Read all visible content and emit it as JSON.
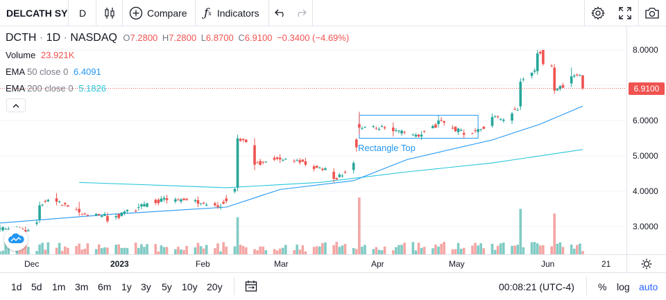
{
  "toolbar": {
    "symbol": "DELCATH SY",
    "interval": "D",
    "compare_label": "Compare",
    "indicators_label": "Indicators"
  },
  "legend": {
    "ticker": "DCTH",
    "interval": "1D",
    "exchange": "NASDAQ",
    "open_label": "O",
    "open": "7.2800",
    "high_label": "H",
    "high": "7.2800",
    "low_label": "L",
    "low": "6.8700",
    "close_label": "C",
    "close": "6.9100",
    "change": "−0.3400 (−4.69%)",
    "volume_label": "Volume",
    "volume": "23.921K",
    "ema50_label": "EMA",
    "ema50_params": "50 close 0",
    "ema50_value": "6.4091",
    "ema200_label": "EMA",
    "ema200_params": "200 close 0",
    "ema200_value": "5.1826"
  },
  "annotation": {
    "label": "Rectangle Top"
  },
  "colors": {
    "up": "#26a69a",
    "down": "#ef5350",
    "ema50": "#2196f3",
    "ema200": "#26c6da",
    "vol_up": "#80cbc4",
    "vol_down": "#f4a6a4",
    "rect": "#2196f3"
  },
  "price_axis": {
    "labels": [
      "8.0000",
      "6.0000",
      "5.0000",
      "4.0000",
      "3.0000"
    ],
    "current_price": "6.9100"
  },
  "time_axis": {
    "labels": [
      "Dec",
      "2023",
      "Feb",
      "Mar",
      "Apr",
      "May",
      "Jun",
      "21"
    ]
  },
  "bottom": {
    "ranges": [
      "1d",
      "5d",
      "1m",
      "3m",
      "6m",
      "1y",
      "3y",
      "5y",
      "10y",
      "20y"
    ],
    "clock": "00:08:21 (UTC-4)",
    "percent": "%",
    "log": "log",
    "auto": "auto"
  },
  "chart_data": {
    "type": "candlestick",
    "symbol": "DCTH",
    "x_range": [
      "2022-11-22",
      "2023-06-16"
    ],
    "y_range": [
      2.2,
      8.3
    ],
    "price_axis_ticks": [
      3.0,
      4.0,
      5.0,
      6.0,
      8.0
    ],
    "current_price": 6.91,
    "ohlc_samples": [
      {
        "date": "2022-11-22",
        "o": 2.95,
        "h": 3.05,
        "l": 2.85,
        "c": 2.95
      },
      {
        "date": "2022-12-01",
        "o": 2.9,
        "h": 3.0,
        "l": 2.75,
        "c": 2.85
      },
      {
        "date": "2022-12-06",
        "o": 3.2,
        "h": 3.7,
        "l": 3.1,
        "c": 3.6
      },
      {
        "date": "2022-12-12",
        "o": 3.8,
        "h": 3.95,
        "l": 3.6,
        "c": 3.7
      },
      {
        "date": "2022-12-20",
        "o": 3.5,
        "h": 3.7,
        "l": 3.3,
        "c": 3.4
      },
      {
        "date": "2022-12-30",
        "o": 3.3,
        "h": 3.4,
        "l": 3.1,
        "c": 3.15
      },
      {
        "date": "2023-01-10",
        "o": 3.55,
        "h": 3.65,
        "l": 3.45,
        "c": 3.55
      },
      {
        "date": "2023-01-20",
        "o": 3.8,
        "h": 3.9,
        "l": 3.65,
        "c": 3.75
      },
      {
        "date": "2023-01-31",
        "o": 3.75,
        "h": 3.85,
        "l": 3.55,
        "c": 3.65
      },
      {
        "date": "2023-02-07",
        "o": 3.6,
        "h": 3.7,
        "l": 3.5,
        "c": 3.55
      },
      {
        "date": "2023-02-14",
        "o": 4.1,
        "h": 5.6,
        "l": 4.0,
        "c": 5.5
      },
      {
        "date": "2023-02-20",
        "o": 5.3,
        "h": 5.5,
        "l": 4.6,
        "c": 4.75
      },
      {
        "date": "2023-03-01",
        "o": 4.95,
        "h": 5.05,
        "l": 4.8,
        "c": 4.9
      },
      {
        "date": "2023-03-10",
        "o": 4.85,
        "h": 4.95,
        "l": 4.7,
        "c": 4.75
      },
      {
        "date": "2023-03-20",
        "o": 4.55,
        "h": 4.65,
        "l": 4.25,
        "c": 4.35
      },
      {
        "date": "2023-03-27",
        "o": 4.6,
        "h": 4.85,
        "l": 4.5,
        "c": 4.8
      },
      {
        "date": "2023-03-29",
        "o": 5.9,
        "h": 6.25,
        "l": 5.6,
        "c": 5.8
      },
      {
        "date": "2023-04-10",
        "o": 5.8,
        "h": 5.95,
        "l": 5.55,
        "c": 5.7
      },
      {
        "date": "2023-04-20",
        "o": 5.55,
        "h": 5.7,
        "l": 5.45,
        "c": 5.6
      },
      {
        "date": "2023-04-26",
        "o": 5.9,
        "h": 6.15,
        "l": 5.8,
        "c": 6.0
      },
      {
        "date": "2023-05-05",
        "o": 5.65,
        "h": 5.75,
        "l": 5.5,
        "c": 5.6
      },
      {
        "date": "2023-05-15",
        "o": 5.85,
        "h": 6.2,
        "l": 5.8,
        "c": 6.1
      },
      {
        "date": "2023-05-22",
        "o": 6.0,
        "h": 6.25,
        "l": 5.9,
        "c": 6.2
      },
      {
        "date": "2023-05-25",
        "o": 6.4,
        "h": 7.2,
        "l": 6.3,
        "c": 7.1
      },
      {
        "date": "2023-05-31",
        "o": 7.4,
        "h": 8.0,
        "l": 7.3,
        "c": 7.9
      },
      {
        "date": "2023-06-02",
        "o": 8.0,
        "h": 8.0,
        "l": 7.55,
        "c": 7.6
      },
      {
        "date": "2023-06-06",
        "o": 7.5,
        "h": 7.6,
        "l": 6.75,
        "c": 6.85
      },
      {
        "date": "2023-06-12",
        "o": 7.05,
        "h": 7.5,
        "l": 6.95,
        "c": 7.25
      },
      {
        "date": "2023-06-16",
        "o": 7.28,
        "h": 7.28,
        "l": 6.87,
        "c": 6.91
      }
    ],
    "ema50": [
      {
        "date": "2022-11-22",
        "v": 3.1
      },
      {
        "date": "2023-01-01",
        "v": 3.35
      },
      {
        "date": "2023-02-10",
        "v": 3.55
      },
      {
        "date": "2023-03-01",
        "v": 4.05
      },
      {
        "date": "2023-03-27",
        "v": 4.3
      },
      {
        "date": "2023-04-15",
        "v": 4.9
      },
      {
        "date": "2023-05-15",
        "v": 5.45
      },
      {
        "date": "2023-06-01",
        "v": 5.9
      },
      {
        "date": "2023-06-16",
        "v": 6.41
      }
    ],
    "ema200": [
      {
        "date": "2022-12-20",
        "v": 4.25
      },
      {
        "date": "2023-02-10",
        "v": 4.1
      },
      {
        "date": "2023-03-15",
        "v": 4.25
      },
      {
        "date": "2023-04-15",
        "v": 4.55
      },
      {
        "date": "2023-05-15",
        "v": 4.8
      },
      {
        "date": "2023-06-16",
        "v": 5.18
      }
    ],
    "rectangle_pattern": {
      "start": "2023-03-29",
      "end": "2023-05-10",
      "top": 6.15,
      "bottom": 5.5
    }
  }
}
